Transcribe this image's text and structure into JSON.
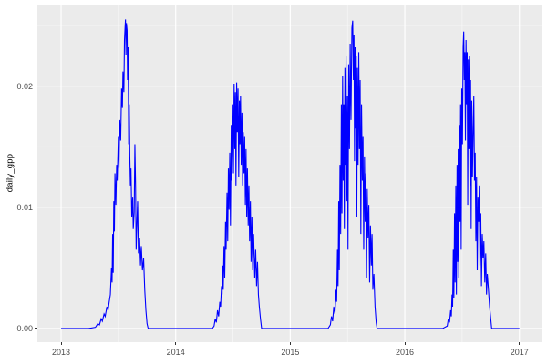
{
  "figure": {
    "background": "#FFFFFF"
  },
  "chart_data": {
    "type": "line",
    "title": "",
    "xlabel": "",
    "ylabel": "daily_gpp",
    "series_name": "daily_gpp",
    "legend": "none",
    "grid": "on",
    "line_color": "#0000FF",
    "panel_bg": "#EBEBEB",
    "grid_major_color": "#FFFFFF",
    "grid_minor_color": "#FFFFFF",
    "tick_color": "#333333",
    "tick_label_color": "#4D4D4D",
    "x_range": [
      2012.793,
      2017.201
    ],
    "y_range": [
      -0.00113,
      0.02673
    ],
    "x_ticks": [
      {
        "value": 2013,
        "label": "2013"
      },
      {
        "value": 2014,
        "label": "2014"
      },
      {
        "value": 2015,
        "label": "2015"
      },
      {
        "value": 2016,
        "label": "2016"
      },
      {
        "value": 2017,
        "label": "2017"
      }
    ],
    "y_ticks": [
      {
        "value": 0.0,
        "label": "0.00"
      },
      {
        "value": 0.01,
        "label": "0.01"
      },
      {
        "value": 0.02,
        "label": "0.02"
      }
    ],
    "x_minor": [
      2013.5,
      2014.5,
      2015.5,
      2016.5
    ],
    "y_minor": [
      0.005,
      0.015,
      0.025
    ],
    "points": [
      [
        2013.0,
        0
      ],
      [
        2013.08,
        0
      ],
      [
        2013.16,
        0
      ],
      [
        2013.24,
        0
      ],
      [
        2013.3,
        0.0001
      ],
      [
        2013.32,
        0.0004
      ],
      [
        2013.335,
        0.0003
      ],
      [
        2013.35,
        0.0008
      ],
      [
        2013.36,
        0.0006
      ],
      [
        2013.375,
        0.0012
      ],
      [
        2013.385,
        0.001
      ],
      [
        2013.4,
        0.0018
      ],
      [
        2013.41,
        0.0015
      ],
      [
        2013.42,
        0.0022
      ],
      [
        2013.43,
        0.0028
      ],
      [
        2013.44,
        0.005
      ],
      [
        2013.445,
        0.0038
      ],
      [
        2013.45,
        0.0078
      ],
      [
        2013.455,
        0.0046
      ],
      [
        2013.46,
        0.0105
      ],
      [
        2013.465,
        0.008
      ],
      [
        2013.47,
        0.0128
      ],
      [
        2013.478,
        0.0102
      ],
      [
        2013.485,
        0.0135
      ],
      [
        2013.49,
        0.0122
      ],
      [
        2013.5,
        0.0158
      ],
      [
        2013.505,
        0.0132
      ],
      [
        2013.512,
        0.0172
      ],
      [
        2013.52,
        0.0155
      ],
      [
        2013.528,
        0.0198
      ],
      [
        2013.535,
        0.0182
      ],
      [
        2013.54,
        0.0212
      ],
      [
        2013.548,
        0.0195
      ],
      [
        2013.553,
        0.0238
      ],
      [
        2013.558,
        0.0248
      ],
      [
        2013.562,
        0.0255
      ],
      [
        2013.566,
        0.0226
      ],
      [
        2013.57,
        0.0252
      ],
      [
        2013.576,
        0.0246
      ],
      [
        2013.58,
        0.0205
      ],
      [
        2013.585,
        0.0232
      ],
      [
        2013.59,
        0.0152
      ],
      [
        2013.595,
        0.0185
      ],
      [
        2013.6,
        0.0142
      ],
      [
        2013.605,
        0.0118
      ],
      [
        2013.61,
        0.0132
      ],
      [
        2013.617,
        0.0092
      ],
      [
        2013.625,
        0.0108
      ],
      [
        2013.63,
        0.0082
      ],
      [
        2013.638,
        0.0096
      ],
      [
        2013.644,
        0.0152
      ],
      [
        2013.65,
        0.0118
      ],
      [
        2013.655,
        0.0065
      ],
      [
        2013.662,
        0.0088
      ],
      [
        2013.668,
        0.0105
      ],
      [
        2013.675,
        0.0062
      ],
      [
        2013.685,
        0.0075
      ],
      [
        2013.693,
        0.0052
      ],
      [
        2013.7,
        0.0068
      ],
      [
        2013.71,
        0.0048
      ],
      [
        2013.72,
        0.0058
      ],
      [
        2013.73,
        0.0032
      ],
      [
        2013.74,
        0.0015
      ],
      [
        2013.75,
        0.0004
      ],
      [
        2013.76,
        0
      ],
      [
        2013.85,
        0
      ],
      [
        2013.95,
        0
      ],
      [
        2014.05,
        0
      ],
      [
        2014.15,
        0
      ],
      [
        2014.25,
        0
      ],
      [
        2014.32,
        0
      ],
      [
        2014.335,
        0.0002
      ],
      [
        2014.345,
        0.0008
      ],
      [
        2014.355,
        0.0005
      ],
      [
        2014.365,
        0.0015
      ],
      [
        2014.375,
        0.001
      ],
      [
        2014.385,
        0.0022
      ],
      [
        2014.392,
        0.0018
      ],
      [
        2014.4,
        0.0035
      ],
      [
        2014.405,
        0.0028
      ],
      [
        2014.41,
        0.0052
      ],
      [
        2014.415,
        0.0032
      ],
      [
        2014.422,
        0.0068
      ],
      [
        2014.428,
        0.0042
      ],
      [
        2014.435,
        0.0088
      ],
      [
        2014.44,
        0.0065
      ],
      [
        2014.448,
        0.0112
      ],
      [
        2014.454,
        0.0072
      ],
      [
        2014.46,
        0.0132
      ],
      [
        2014.466,
        0.0098
      ],
      [
        2014.472,
        0.0145
      ],
      [
        2014.478,
        0.0085
      ],
      [
        2014.485,
        0.0168
      ],
      [
        2014.49,
        0.0122
      ],
      [
        2014.498,
        0.0185
      ],
      [
        2014.504,
        0.0128
      ],
      [
        2014.51,
        0.0202
      ],
      [
        2014.516,
        0.0148
      ],
      [
        2014.521,
        0.0195
      ],
      [
        2014.526,
        0.0118
      ],
      [
        2014.532,
        0.0203
      ],
      [
        2014.538,
        0.0162
      ],
      [
        2014.544,
        0.0198
      ],
      [
        2014.55,
        0.0125
      ],
      [
        2014.556,
        0.0188
      ],
      [
        2014.561,
        0.0152
      ],
      [
        2014.566,
        0.0192
      ],
      [
        2014.572,
        0.0135
      ],
      [
        2014.578,
        0.0178
      ],
      [
        2014.584,
        0.0118
      ],
      [
        2014.59,
        0.0162
      ],
      [
        2014.596,
        0.0128
      ],
      [
        2014.602,
        0.0158
      ],
      [
        2014.608,
        0.0102
      ],
      [
        2014.614,
        0.0148
      ],
      [
        2014.62,
        0.0092
      ],
      [
        2014.626,
        0.0132
      ],
      [
        2014.633,
        0.0085
      ],
      [
        2014.639,
        0.0118
      ],
      [
        2014.645,
        0.0072
      ],
      [
        2014.652,
        0.0105
      ],
      [
        2014.658,
        0.0055
      ],
      [
        2014.665,
        0.0092
      ],
      [
        2014.672,
        0.0048
      ],
      [
        2014.68,
        0.0078
      ],
      [
        2014.69,
        0.0042
      ],
      [
        2014.698,
        0.0065
      ],
      [
        2014.706,
        0.0035
      ],
      [
        2014.714,
        0.0055
      ],
      [
        2014.722,
        0.0028
      ],
      [
        2014.73,
        0.0018
      ],
      [
        2014.74,
        0.0008
      ],
      [
        2014.75,
        0
      ],
      [
        2014.85,
        0
      ],
      [
        2014.95,
        0
      ],
      [
        2015.05,
        0
      ],
      [
        2015.15,
        0
      ],
      [
        2015.25,
        0
      ],
      [
        2015.33,
        0
      ],
      [
        2015.35,
        0.0003
      ],
      [
        2015.36,
        0.001
      ],
      [
        2015.37,
        0.0006
      ],
      [
        2015.38,
        0.0018
      ],
      [
        2015.39,
        0.0012
      ],
      [
        2015.4,
        0.0032
      ],
      [
        2015.405,
        0.0022
      ],
      [
        2015.412,
        0.0065
      ],
      [
        2015.417,
        0.0035
      ],
      [
        2015.423,
        0.0105
      ],
      [
        2015.428,
        0.0048
      ],
      [
        2015.434,
        0.0135
      ],
      [
        2015.44,
        0.0078
      ],
      [
        2015.446,
        0.0185
      ],
      [
        2015.451,
        0.0095
      ],
      [
        2015.457,
        0.0208
      ],
      [
        2015.462,
        0.0122
      ],
      [
        2015.467,
        0.0185
      ],
      [
        2015.472,
        0.0082
      ],
      [
        2015.477,
        0.0215
      ],
      [
        2015.482,
        0.0135
      ],
      [
        2015.487,
        0.0225
      ],
      [
        2015.493,
        0.0105
      ],
      [
        2015.499,
        0.0192
      ],
      [
        2015.504,
        0.0065
      ],
      [
        2015.51,
        0.0218
      ],
      [
        2015.517,
        0.0148
      ],
      [
        2015.523,
        0.0235
      ],
      [
        2015.53,
        0.0172
      ],
      [
        2015.538,
        0.0248
      ],
      [
        2015.545,
        0.0254
      ],
      [
        2015.551,
        0.0205
      ],
      [
        2015.556,
        0.0242
      ],
      [
        2015.561,
        0.0138
      ],
      [
        2015.566,
        0.0232
      ],
      [
        2015.571,
        0.0165
      ],
      [
        2015.576,
        0.0225
      ],
      [
        2015.581,
        0.0092
      ],
      [
        2015.586,
        0.0215
      ],
      [
        2015.592,
        0.0135
      ],
      [
        2015.598,
        0.0228
      ],
      [
        2015.604,
        0.0148
      ],
      [
        2015.61,
        0.0205
      ],
      [
        2015.616,
        0.0078
      ],
      [
        2015.622,
        0.0185
      ],
      [
        2015.629,
        0.0122
      ],
      [
        2015.635,
        0.0158
      ],
      [
        2015.641,
        0.0065
      ],
      [
        2015.648,
        0.0142
      ],
      [
        2015.654,
        0.0088
      ],
      [
        2015.66,
        0.0128
      ],
      [
        2015.666,
        0.0042
      ],
      [
        2015.672,
        0.0115
      ],
      [
        2015.679,
        0.0075
      ],
      [
        2015.686,
        0.0102
      ],
      [
        2015.693,
        0.0038
      ],
      [
        2015.7,
        0.0085
      ],
      [
        2015.708,
        0.0052
      ],
      [
        2015.714,
        0.0078
      ],
      [
        2015.721,
        0.0032
      ],
      [
        2015.73,
        0.0045
      ],
      [
        2015.74,
        0.0018
      ],
      [
        2015.75,
        0.0005
      ],
      [
        2015.758,
        0
      ],
      [
        2015.85,
        0
      ],
      [
        2015.95,
        0
      ],
      [
        2016.05,
        0
      ],
      [
        2016.15,
        0
      ],
      [
        2016.25,
        0
      ],
      [
        2016.33,
        0
      ],
      [
        2016.37,
        0.0002
      ],
      [
        2016.38,
        0.0008
      ],
      [
        2016.39,
        0.0005
      ],
      [
        2016.4,
        0.0015
      ],
      [
        2016.406,
        0.001
      ],
      [
        2016.412,
        0.0028
      ],
      [
        2016.417,
        0.0018
      ],
      [
        2016.423,
        0.0065
      ],
      [
        2016.428,
        0.0025
      ],
      [
        2016.434,
        0.0095
      ],
      [
        2016.439,
        0.0038
      ],
      [
        2016.445,
        0.0118
      ],
      [
        2016.45,
        0.0028
      ],
      [
        2016.456,
        0.0135
      ],
      [
        2016.461,
        0.0055
      ],
      [
        2016.466,
        0.0148
      ],
      [
        2016.471,
        0.0042
      ],
      [
        2016.477,
        0.0168
      ],
      [
        2016.482,
        0.0088
      ],
      [
        2016.487,
        0.0185
      ],
      [
        2016.492,
        0.0065
      ],
      [
        2016.497,
        0.0198
      ],
      [
        2016.503,
        0.0152
      ],
      [
        2016.509,
        0.0232
      ],
      [
        2016.514,
        0.0245
      ],
      [
        2016.519,
        0.0205
      ],
      [
        2016.524,
        0.0228
      ],
      [
        2016.529,
        0.0155
      ],
      [
        2016.534,
        0.0238
      ],
      [
        2016.539,
        0.0185
      ],
      [
        2016.544,
        0.0228
      ],
      [
        2016.549,
        0.0102
      ],
      [
        2016.554,
        0.0222
      ],
      [
        2016.559,
        0.0148
      ],
      [
        2016.564,
        0.0225
      ],
      [
        2016.569,
        0.0118
      ],
      [
        2016.574,
        0.0205
      ],
      [
        2016.579,
        0.0082
      ],
      [
        2016.584,
        0.0188
      ],
      [
        2016.59,
        0.0125
      ],
      [
        2016.596,
        0.0162
      ],
      [
        2016.602,
        0.0192
      ],
      [
        2016.608,
        0.0122
      ],
      [
        2016.614,
        0.0145
      ],
      [
        2016.62,
        0.0072
      ],
      [
        2016.626,
        0.0125
      ],
      [
        2016.632,
        0.0048
      ],
      [
        2016.638,
        0.0108
      ],
      [
        2016.644,
        0.0088
      ],
      [
        2016.65,
        0.0118
      ],
      [
        2016.656,
        0.0052
      ],
      [
        2016.663,
        0.0095
      ],
      [
        2016.669,
        0.0035
      ],
      [
        2016.676,
        0.0078
      ],
      [
        2016.683,
        0.0058
      ],
      [
        2016.69,
        0.0072
      ],
      [
        2016.698,
        0.0038
      ],
      [
        2016.706,
        0.0062
      ],
      [
        2016.713,
        0.0028
      ],
      [
        2016.72,
        0.0045
      ],
      [
        2016.73,
        0.0032
      ],
      [
        2016.74,
        0.0018
      ],
      [
        2016.75,
        0.0008
      ],
      [
        2016.758,
        0
      ],
      [
        2016.82,
        0
      ],
      [
        2016.88,
        0
      ],
      [
        2016.94,
        0
      ],
      [
        2017.0,
        0
      ]
    ]
  }
}
